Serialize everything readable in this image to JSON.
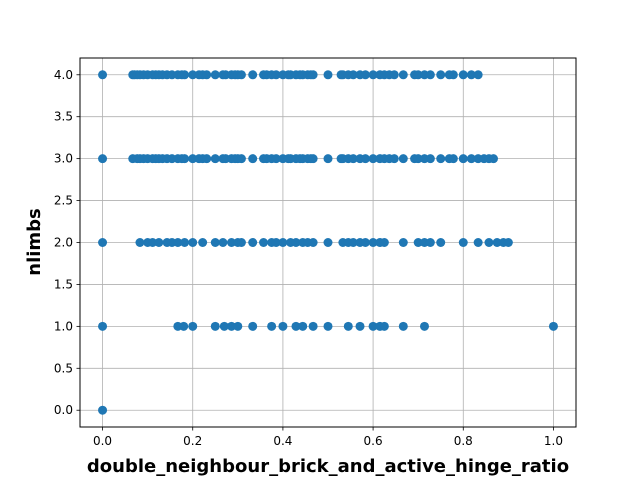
{
  "chart_data": {
    "type": "scatter",
    "title": "",
    "xlabel": "double_neighbour_brick_and_active_hinge_ratio",
    "ylabel": "nlimbs",
    "xlim": [
      -0.05,
      1.05
    ],
    "ylim": [
      -0.2,
      4.2
    ],
    "xticks": [
      0.0,
      0.2,
      0.4,
      0.6,
      0.8,
      1.0
    ],
    "yticks": [
      0.0,
      0.5,
      1.0,
      1.5,
      2.0,
      2.5,
      3.0,
      3.5,
      4.0
    ],
    "xtick_labels": [
      "0.0",
      "0.2",
      "0.4",
      "0.6",
      "0.8",
      "1.0"
    ],
    "ytick_labels": [
      "0.0",
      "0.5",
      "1.0",
      "1.5",
      "2.0",
      "2.5",
      "3.0",
      "3.5",
      "4.0"
    ],
    "grid": true,
    "marker_color": "#1f77b4",
    "series": [
      {
        "points": [
          [
            0.0,
            0.0
          ],
          [
            0.0,
            1.0
          ],
          [
            0.167,
            1.0
          ],
          [
            0.18,
            1.0
          ],
          [
            0.2,
            1.0
          ],
          [
            0.25,
            1.0
          ],
          [
            0.27,
            1.0
          ],
          [
            0.286,
            1.0
          ],
          [
            0.3,
            1.0
          ],
          [
            0.333,
            1.0
          ],
          [
            0.375,
            1.0
          ],
          [
            0.4,
            1.0
          ],
          [
            0.429,
            1.0
          ],
          [
            0.444,
            1.0
          ],
          [
            0.467,
            1.0
          ],
          [
            0.5,
            1.0
          ],
          [
            0.545,
            1.0
          ],
          [
            0.571,
            1.0
          ],
          [
            0.6,
            1.0
          ],
          [
            0.615,
            1.0
          ],
          [
            0.625,
            1.0
          ],
          [
            0.667,
            1.0
          ],
          [
            0.714,
            1.0
          ],
          [
            1.0,
            1.0
          ],
          [
            0.0,
            2.0
          ],
          [
            0.083,
            2.0
          ],
          [
            0.1,
            2.0
          ],
          [
            0.111,
            2.0
          ],
          [
            0.125,
            2.0
          ],
          [
            0.143,
            2.0
          ],
          [
            0.154,
            2.0
          ],
          [
            0.167,
            2.0
          ],
          [
            0.182,
            2.0
          ],
          [
            0.2,
            2.0
          ],
          [
            0.222,
            2.0
          ],
          [
            0.25,
            2.0
          ],
          [
            0.267,
            2.0
          ],
          [
            0.286,
            2.0
          ],
          [
            0.3,
            2.0
          ],
          [
            0.308,
            2.0
          ],
          [
            0.333,
            2.0
          ],
          [
            0.357,
            2.0
          ],
          [
            0.375,
            2.0
          ],
          [
            0.385,
            2.0
          ],
          [
            0.4,
            2.0
          ],
          [
            0.417,
            2.0
          ],
          [
            0.429,
            2.0
          ],
          [
            0.444,
            2.0
          ],
          [
            0.455,
            2.0
          ],
          [
            0.467,
            2.0
          ],
          [
            0.5,
            2.0
          ],
          [
            0.533,
            2.0
          ],
          [
            0.545,
            2.0
          ],
          [
            0.556,
            2.0
          ],
          [
            0.571,
            2.0
          ],
          [
            0.583,
            2.0
          ],
          [
            0.6,
            2.0
          ],
          [
            0.615,
            2.0
          ],
          [
            0.625,
            2.0
          ],
          [
            0.667,
            2.0
          ],
          [
            0.7,
            2.0
          ],
          [
            0.714,
            2.0
          ],
          [
            0.727,
            2.0
          ],
          [
            0.75,
            2.0
          ],
          [
            0.8,
            2.0
          ],
          [
            0.833,
            2.0
          ],
          [
            0.857,
            2.0
          ],
          [
            0.875,
            2.0
          ],
          [
            0.889,
            2.0
          ],
          [
            0.9,
            2.0
          ],
          [
            0.0,
            3.0
          ],
          [
            0.067,
            3.0
          ],
          [
            0.077,
            3.0
          ],
          [
            0.083,
            3.0
          ],
          [
            0.091,
            3.0
          ],
          [
            0.1,
            3.0
          ],
          [
            0.111,
            3.0
          ],
          [
            0.118,
            3.0
          ],
          [
            0.125,
            3.0
          ],
          [
            0.133,
            3.0
          ],
          [
            0.143,
            3.0
          ],
          [
            0.154,
            3.0
          ],
          [
            0.167,
            3.0
          ],
          [
            0.176,
            3.0
          ],
          [
            0.182,
            3.0
          ],
          [
            0.2,
            3.0
          ],
          [
            0.214,
            3.0
          ],
          [
            0.222,
            3.0
          ],
          [
            0.231,
            3.0
          ],
          [
            0.25,
            3.0
          ],
          [
            0.267,
            3.0
          ],
          [
            0.273,
            3.0
          ],
          [
            0.286,
            3.0
          ],
          [
            0.294,
            3.0
          ],
          [
            0.3,
            3.0
          ],
          [
            0.308,
            3.0
          ],
          [
            0.333,
            3.0
          ],
          [
            0.357,
            3.0
          ],
          [
            0.364,
            3.0
          ],
          [
            0.375,
            3.0
          ],
          [
            0.385,
            3.0
          ],
          [
            0.4,
            3.0
          ],
          [
            0.412,
            3.0
          ],
          [
            0.417,
            3.0
          ],
          [
            0.429,
            3.0
          ],
          [
            0.438,
            3.0
          ],
          [
            0.444,
            3.0
          ],
          [
            0.455,
            3.0
          ],
          [
            0.462,
            3.0
          ],
          [
            0.467,
            3.0
          ],
          [
            0.5,
            3.0
          ],
          [
            0.529,
            3.0
          ],
          [
            0.533,
            3.0
          ],
          [
            0.545,
            3.0
          ],
          [
            0.556,
            3.0
          ],
          [
            0.571,
            3.0
          ],
          [
            0.583,
            3.0
          ],
          [
            0.6,
            3.0
          ],
          [
            0.615,
            3.0
          ],
          [
            0.625,
            3.0
          ],
          [
            0.636,
            3.0
          ],
          [
            0.647,
            3.0
          ],
          [
            0.667,
            3.0
          ],
          [
            0.692,
            3.0
          ],
          [
            0.7,
            3.0
          ],
          [
            0.714,
            3.0
          ],
          [
            0.727,
            3.0
          ],
          [
            0.75,
            3.0
          ],
          [
            0.769,
            3.0
          ],
          [
            0.778,
            3.0
          ],
          [
            0.8,
            3.0
          ],
          [
            0.818,
            3.0
          ],
          [
            0.833,
            3.0
          ],
          [
            0.846,
            3.0
          ],
          [
            0.857,
            3.0
          ],
          [
            0.867,
            3.0
          ],
          [
            0.0,
            4.0
          ],
          [
            0.067,
            4.0
          ],
          [
            0.071,
            4.0
          ],
          [
            0.077,
            4.0
          ],
          [
            0.083,
            4.0
          ],
          [
            0.091,
            4.0
          ],
          [
            0.1,
            4.0
          ],
          [
            0.111,
            4.0
          ],
          [
            0.118,
            4.0
          ],
          [
            0.125,
            4.0
          ],
          [
            0.133,
            4.0
          ],
          [
            0.143,
            4.0
          ],
          [
            0.154,
            4.0
          ],
          [
            0.167,
            4.0
          ],
          [
            0.176,
            4.0
          ],
          [
            0.182,
            4.0
          ],
          [
            0.2,
            4.0
          ],
          [
            0.214,
            4.0
          ],
          [
            0.222,
            4.0
          ],
          [
            0.231,
            4.0
          ],
          [
            0.25,
            4.0
          ],
          [
            0.267,
            4.0
          ],
          [
            0.273,
            4.0
          ],
          [
            0.286,
            4.0
          ],
          [
            0.294,
            4.0
          ],
          [
            0.3,
            4.0
          ],
          [
            0.308,
            4.0
          ],
          [
            0.333,
            4.0
          ],
          [
            0.357,
            4.0
          ],
          [
            0.364,
            4.0
          ],
          [
            0.375,
            4.0
          ],
          [
            0.385,
            4.0
          ],
          [
            0.4,
            4.0
          ],
          [
            0.412,
            4.0
          ],
          [
            0.417,
            4.0
          ],
          [
            0.429,
            4.0
          ],
          [
            0.438,
            4.0
          ],
          [
            0.444,
            4.0
          ],
          [
            0.455,
            4.0
          ],
          [
            0.462,
            4.0
          ],
          [
            0.467,
            4.0
          ],
          [
            0.5,
            4.0
          ],
          [
            0.529,
            4.0
          ],
          [
            0.533,
            4.0
          ],
          [
            0.545,
            4.0
          ],
          [
            0.556,
            4.0
          ],
          [
            0.571,
            4.0
          ],
          [
            0.583,
            4.0
          ],
          [
            0.6,
            4.0
          ],
          [
            0.615,
            4.0
          ],
          [
            0.625,
            4.0
          ],
          [
            0.636,
            4.0
          ],
          [
            0.647,
            4.0
          ],
          [
            0.667,
            4.0
          ],
          [
            0.692,
            4.0
          ],
          [
            0.7,
            4.0
          ],
          [
            0.714,
            4.0
          ],
          [
            0.727,
            4.0
          ],
          [
            0.75,
            4.0
          ],
          [
            0.769,
            4.0
          ],
          [
            0.778,
            4.0
          ],
          [
            0.8,
            4.0
          ],
          [
            0.818,
            4.0
          ],
          [
            0.833,
            4.0
          ]
        ]
      }
    ]
  }
}
